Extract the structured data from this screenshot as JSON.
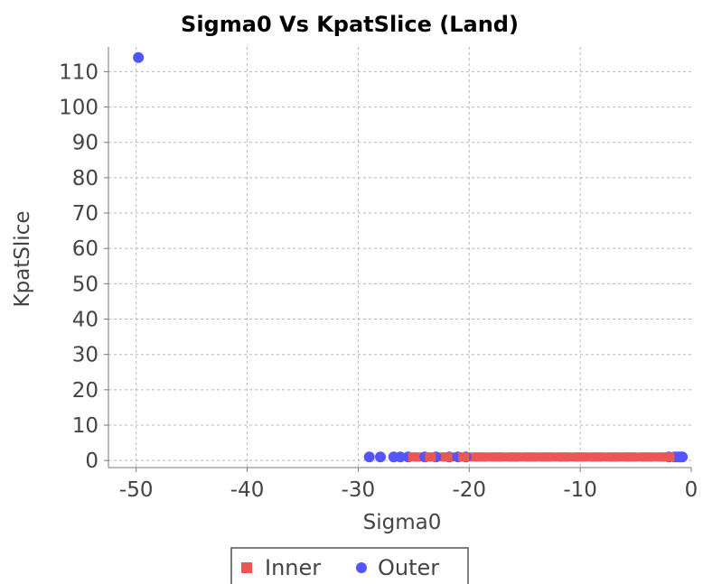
{
  "chart_data": {
    "type": "scatter",
    "title": "Sigma0 Vs KpatSlice (Land)",
    "xlabel": "Sigma0",
    "ylabel": "KpatSlice",
    "xlim": [
      -52.5,
      0
    ],
    "ylim": [
      -2,
      117
    ],
    "xticks": [
      -50,
      -40,
      -30,
      -20,
      -10,
      0
    ],
    "yticks": [
      0,
      10,
      20,
      30,
      40,
      50,
      60,
      70,
      80,
      90,
      100,
      110
    ],
    "grid": true,
    "legend": "bottom",
    "series": [
      {
        "name": "Outer",
        "color": "#5555ff",
        "marker": "circle",
        "points": [
          [
            -49.8,
            114
          ],
          [
            -29,
            1
          ],
          [
            -28,
            1
          ],
          [
            -26.8,
            1
          ],
          [
            -26.2,
            1
          ],
          [
            -25.5,
            1
          ],
          [
            -24,
            1
          ],
          [
            -23,
            1
          ],
          [
            -21.8,
            1
          ],
          [
            -21,
            1
          ],
          [
            -20.3,
            1
          ],
          [
            -2,
            1
          ],
          [
            -1.5,
            1
          ],
          [
            -1.2,
            1
          ],
          [
            -1.0,
            1
          ],
          [
            -0.8,
            1
          ]
        ]
      },
      {
        "name": "Inner",
        "color": "#ee5555",
        "marker": "square",
        "points": [
          [
            -25,
            1
          ],
          [
            -23.5,
            1
          ],
          [
            -22,
            1
          ],
          [
            -20.5,
            1
          ],
          [
            -19,
            1
          ],
          [
            -17.5,
            1
          ],
          [
            -16,
            1
          ],
          [
            -14.5,
            1
          ],
          [
            -13,
            1
          ],
          [
            -11.5,
            1
          ],
          [
            -10,
            1
          ],
          [
            -8.5,
            1
          ],
          [
            -7,
            1
          ],
          [
            -5.5,
            1
          ],
          [
            -4,
            1
          ],
          [
            -2.5,
            1
          ],
          [
            -2,
            1
          ]
        ]
      }
    ]
  }
}
